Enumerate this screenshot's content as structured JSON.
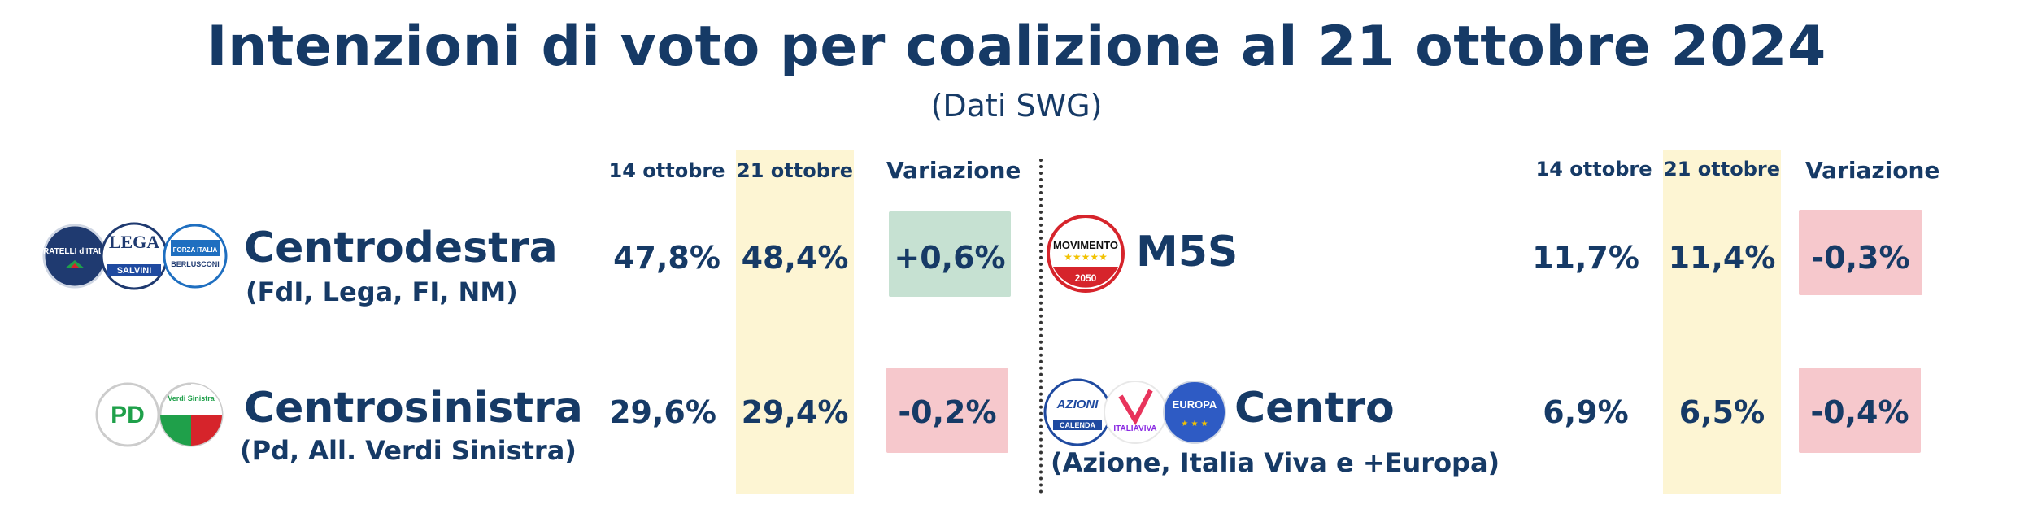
{
  "title": "Intenzioni di voto per coalizione al 21 ottobre 2024",
  "subtitle": "(Dati SWG)",
  "colors": {
    "navy": "#163a66",
    "highlight": "#fdf5d3",
    "positive": "#c6e1d2",
    "negative": "#f6c8cc"
  },
  "left_headers": {
    "prev": "14 ottobre",
    "curr": "21 ottobre",
    "var": "Variazione"
  },
  "right_headers": {
    "prev": "14 ottobre",
    "curr": "21 ottobre",
    "var": "Variazione"
  },
  "logos": {
    "fdi": "FRATELLI d'ITALIA",
    "lega": "LEGA",
    "salvini": "SALVINI",
    "forza_italia": "FORZA ITALIA",
    "berlusconi": "BERLUSCONI",
    "pd": "PD",
    "avs": "Verdi Sinistra",
    "m5s": "MOVIMENTO",
    "m5s_year": "2050",
    "azione": "AZIONI",
    "calenda": "CALENDA",
    "italia_viva": "ITALIAVIVA",
    "europa": "EUROPA"
  },
  "chart_data": {
    "type": "table",
    "columns": [
      "14 ottobre",
      "21 ottobre",
      "Variazione"
    ],
    "rows": [
      {
        "name": "Centrodestra",
        "detail": "(FdI, Lega, FI, NM)",
        "prev": "47,8%",
        "curr": "48,4%",
        "var": "+0,6%",
        "prev_value": 47.8,
        "curr_value": 48.4,
        "var_value": 0.6
      },
      {
        "name": "Centrosinistra",
        "detail": "(Pd, All. Verdi Sinistra)",
        "prev": "29,6%",
        "curr": "29,4%",
        "var": "-0,2%",
        "prev_value": 29.6,
        "curr_value": 29.4,
        "var_value": -0.2
      },
      {
        "name": "M5S",
        "detail": "",
        "prev": "11,7%",
        "curr": "11,4%",
        "var": "-0,3%",
        "prev_value": 11.7,
        "curr_value": 11.4,
        "var_value": -0.3
      },
      {
        "name": "Centro",
        "detail": "(Azione, Italia Viva e +Europa)",
        "prev": "6,9%",
        "curr": "6,5%",
        "var": "-0,4%",
        "prev_value": 6.9,
        "curr_value": 6.5,
        "var_value": -0.4
      }
    ]
  }
}
